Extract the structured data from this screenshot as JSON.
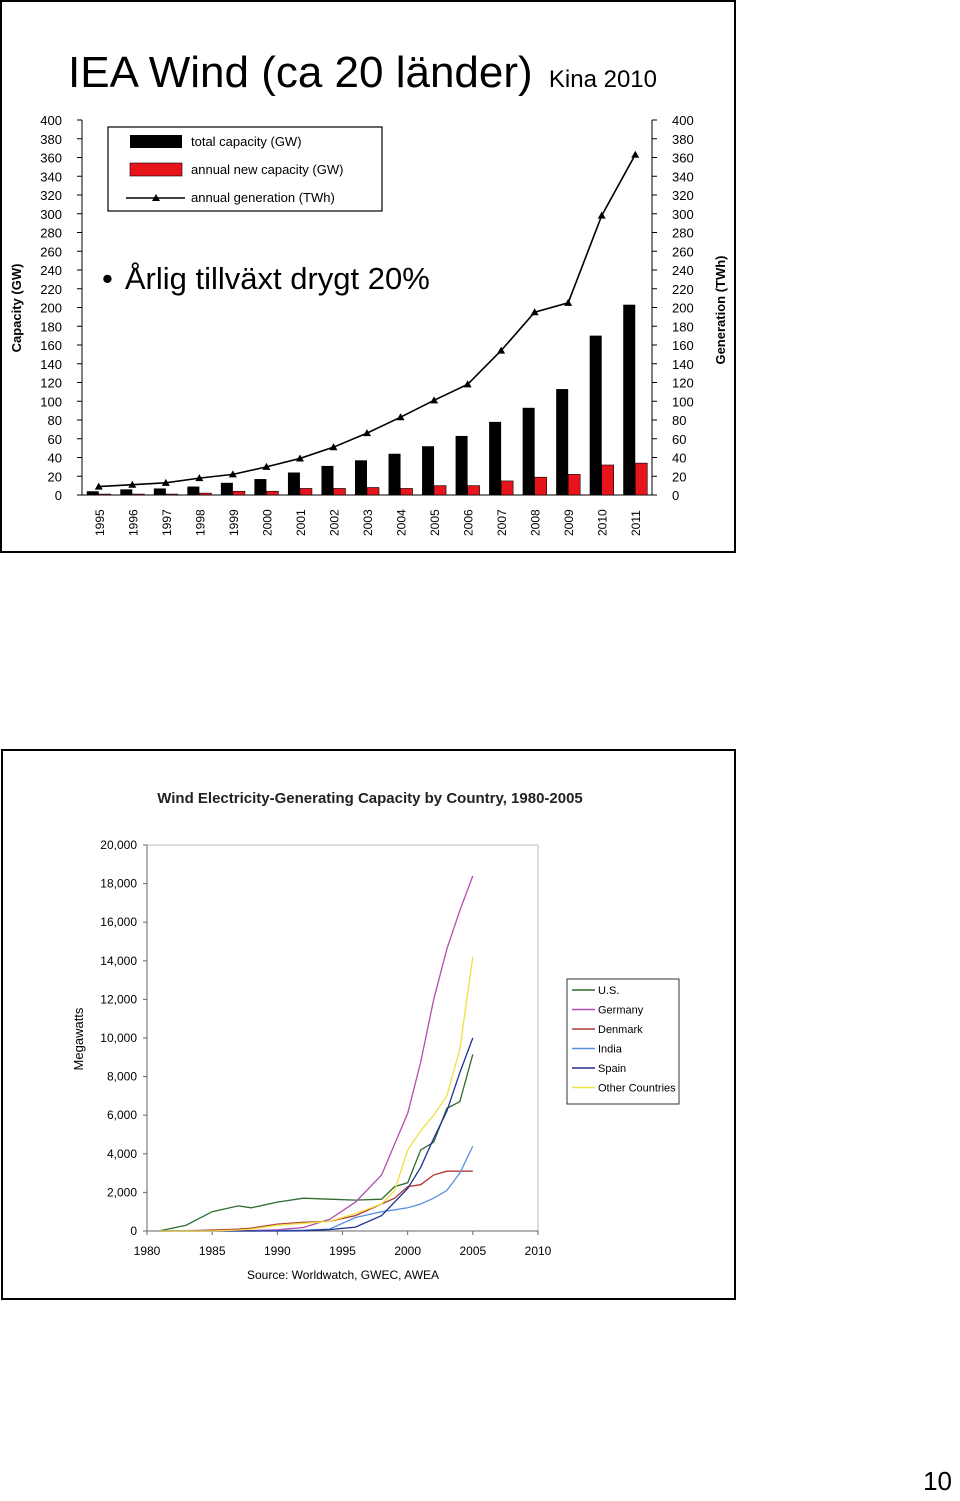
{
  "slide1": {
    "title": "IEA Wind (ca 20 länder)",
    "subtitle": "Kina 2010",
    "bullet": "Årlig tillväxt drygt 20%"
  },
  "slide2": {},
  "page_number": "10",
  "colors": {
    "total": "#000000",
    "annual_new": "#e8141c",
    "generation": "#000000",
    "us": "#2f6b2f",
    "germany": "#b04fb0",
    "denmark": "#b03a3a",
    "india": "#5b8fe0",
    "spain": "#1f2f8f",
    "other": "#f0e040"
  },
  "chart_data": [
    {
      "type": "bar",
      "categories": [
        "1995",
        "1996",
        "1997",
        "1998",
        "1999",
        "2000",
        "2001",
        "2002",
        "2003",
        "2004",
        "2005",
        "2006",
        "2007",
        "2008",
        "2009",
        "2010",
        "2011"
      ],
      "series": [
        {
          "name": "total capacity (GW)",
          "kind": "bar",
          "axis": "left",
          "values": [
            4,
            6,
            7,
            9,
            13,
            17,
            24,
            31,
            37,
            44,
            52,
            63,
            78,
            93,
            113,
            170,
            203
          ]
        },
        {
          "name": "annual new capacity (GW)",
          "kind": "bar",
          "axis": "left",
          "values": [
            1,
            1,
            1,
            2,
            4,
            4,
            7,
            7,
            8,
            7,
            10,
            10,
            15,
            19,
            22,
            32,
            34
          ]
        },
        {
          "name": "annual generation (TWh)",
          "kind": "line",
          "axis": "right",
          "values": [
            9,
            11,
            13,
            18,
            22,
            30,
            39,
            51,
            66,
            83,
            101,
            118,
            154,
            195,
            205,
            298,
            363
          ]
        }
      ],
      "ylabel_left": "Capacity (GW)",
      "ylabel_right": "Generation (TWh)",
      "ylim": [
        0,
        400
      ],
      "yticks": [
        0,
        20,
        40,
        60,
        80,
        100,
        120,
        140,
        160,
        180,
        200,
        220,
        240,
        260,
        280,
        300,
        320,
        340,
        360,
        380,
        400
      ],
      "legend": "top-left",
      "grid": false
    },
    {
      "type": "line",
      "title": "Wind Electricity-Generating Capacity by Country, 1980-2005",
      "ylabel": "Megawatts",
      "source": "Source: Worldwatch, GWEC, AWEA",
      "xlim": [
        1980,
        2010
      ],
      "ylim": [
        0,
        20000
      ],
      "xticks": [
        "1980",
        "1985",
        "1990",
        "1995",
        "2000",
        "2005",
        "2010"
      ],
      "yticks": [
        "0",
        "2,000",
        "4,000",
        "6,000",
        "8,000",
        "10,000",
        "12,000",
        "14,000",
        "16,000",
        "18,000",
        "20,000"
      ],
      "legend": "right",
      "grid": false,
      "x": [
        1981,
        1983,
        1985,
        1987,
        1988,
        1990,
        1992,
        1994,
        1996,
        1998,
        1999,
        2000,
        2001,
        2002,
        2003,
        2004,
        2005
      ],
      "series": [
        {
          "name": "U.S.",
          "values": [
            10,
            300,
            1000,
            1300,
            1200,
            1500,
            1700,
            1650,
            1600,
            1650,
            2300,
            2500,
            4200,
            4600,
            6350,
            6700,
            9150
          ]
        },
        {
          "name": "Germany",
          "values": [
            0,
            0,
            0,
            10,
            20,
            60,
            180,
            600,
            1500,
            2900,
            4500,
            6100,
            8750,
            12000,
            14600,
            16600,
            18400
          ]
        },
        {
          "name": "Denmark",
          "values": [
            0,
            10,
            50,
            100,
            150,
            350,
            450,
            500,
            800,
            1400,
            1700,
            2300,
            2400,
            2900,
            3100,
            3100,
            3100
          ]
        },
        {
          "name": "India",
          "values": [
            0,
            0,
            0,
            0,
            0,
            20,
            40,
            100,
            700,
            1000,
            1100,
            1200,
            1400,
            1700,
            2100,
            3000,
            4400
          ]
        },
        {
          "name": "Spain",
          "values": [
            0,
            0,
            0,
            0,
            0,
            0,
            10,
            70,
            200,
            800,
            1500,
            2200,
            3300,
            4800,
            6200,
            8200,
            10000
          ]
        },
        {
          "name": "Other Countries",
          "values": [
            0,
            0,
            0,
            50,
            100,
            300,
            400,
            500,
            900,
            1400,
            2100,
            4200,
            5200,
            6000,
            7000,
            9400,
            14200
          ]
        }
      ]
    }
  ]
}
